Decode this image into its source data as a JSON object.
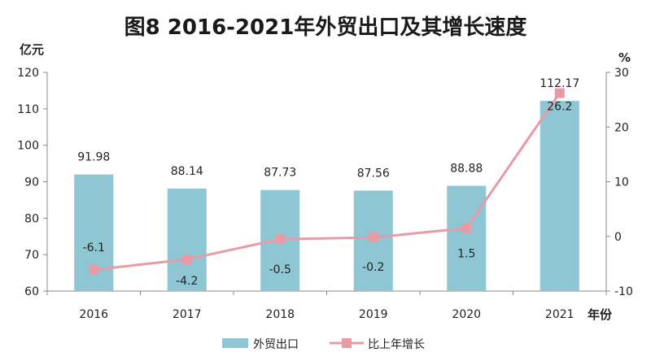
{
  "chart_data": {
    "type": "bar",
    "title": "图8  2016-2021年外贸出口及其增长速度",
    "y_left_label": "亿元",
    "y_right_label": "%",
    "x_label": "年份",
    "categories": [
      "2016",
      "2017",
      "2018",
      "2019",
      "2020",
      "2021"
    ],
    "y_left_ticks": [
      "60",
      "70",
      "80",
      "90",
      "100",
      "110",
      "120"
    ],
    "y_right_ticks": [
      "-10",
      "0",
      "10",
      "20",
      "30"
    ],
    "y_left_lim": [
      60,
      120
    ],
    "y_right_lim": [
      -10,
      30
    ],
    "series": [
      {
        "name": "外贸出口",
        "kind": "bar",
        "axis": "left",
        "color": "#8fc6d4",
        "values": [
          91.98,
          88.14,
          87.73,
          87.56,
          88.88,
          112.17
        ],
        "labels": [
          "91.98",
          "88.14",
          "87.73",
          "87.56",
          "88.88",
          "112.17"
        ]
      },
      {
        "name": "比上年增长",
        "kind": "line",
        "axis": "right",
        "color": "#e69ba7",
        "values": [
          -6.1,
          -4.2,
          -0.5,
          -0.2,
          1.5,
          26.2
        ],
        "labels": [
          "-6.1",
          "-4.2",
          "-0.5",
          "-0.2",
          "1.5",
          "26.2"
        ]
      }
    ],
    "legend": {
      "position": "bottom"
    }
  }
}
